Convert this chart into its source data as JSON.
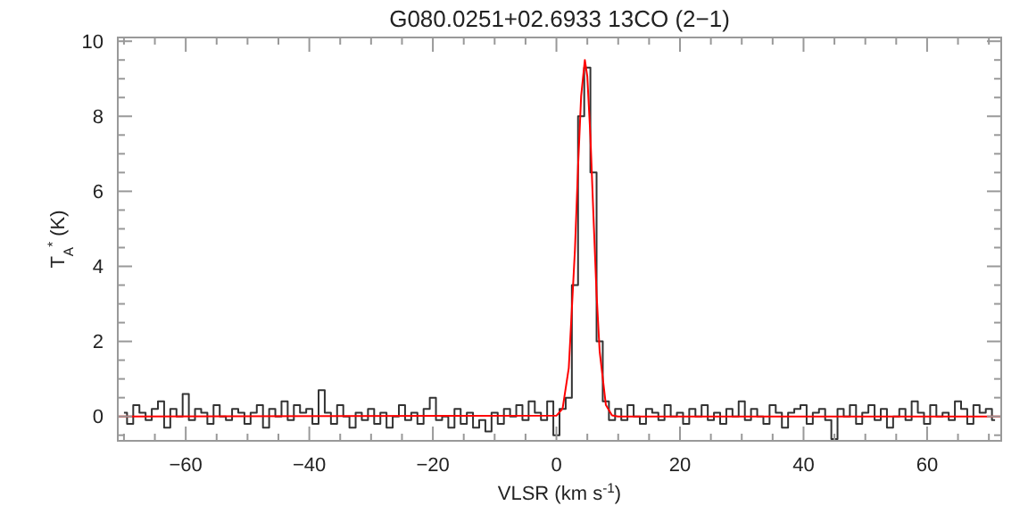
{
  "chart_data": {
    "type": "step",
    "title": "G080.0251+02.6933 13CO (2−1)",
    "xlabel": "VLSR (km s$^{-1}$)",
    "ylabel": "T$_{A}$$^{*}$ (K)",
    "xlim": [
      -71,
      72
    ],
    "ylim": [
      -0.65,
      10.1
    ],
    "xticks": [
      {
        "value": -70,
        "label": null
      },
      {
        "value": -65,
        "label": null
      },
      -60,
      {
        "value": -55,
        "label": null
      },
      {
        "value": -50,
        "label": null
      },
      {
        "value": -45,
        "label": null
      },
      -40,
      {
        "value": -35,
        "label": null
      },
      {
        "value": -30,
        "label": null
      },
      {
        "value": -25,
        "label": null
      },
      -20,
      {
        "value": -15,
        "label": null
      },
      {
        "value": -10,
        "label": null
      },
      {
        "value": -5,
        "label": null
      },
      0,
      {
        "value": 5,
        "label": null
      },
      {
        "value": 10,
        "label": null
      },
      {
        "value": 15,
        "label": null
      },
      20,
      {
        "value": 25,
        "label": null
      },
      {
        "value": 30,
        "label": null
      },
      {
        "value": 35,
        "label": null
      },
      40,
      {
        "value": 45,
        "label": null
      },
      {
        "value": 50,
        "label": null
      },
      {
        "value": 55,
        "label": null
      },
      60,
      {
        "value": 65,
        "label": null
      },
      {
        "value": 70,
        "label": null
      }
    ],
    "yticks": [
      {
        "value": -0.5,
        "label": null
      },
      0,
      {
        "value": 0.5,
        "label": null
      },
      {
        "value": 1,
        "label": null
      },
      {
        "value": 1.5,
        "label": null
      },
      2,
      {
        "value": 2.5,
        "label": null
      },
      {
        "value": 3,
        "label": null
      },
      {
        "value": 3.5,
        "label": null
      },
      4,
      {
        "value": 4.5,
        "label": null
      },
      {
        "value": 5,
        "label": null
      },
      {
        "value": 5.5,
        "label": null
      },
      6,
      {
        "value": 6.5,
        "label": null
      },
      {
        "value": 7,
        "label": null
      },
      {
        "value": 7.5,
        "label": null
      },
      8,
      {
        "value": 8.5,
        "label": null
      },
      {
        "value": 9,
        "label": null
      },
      {
        "value": 9.5,
        "label": null
      },
      10
    ],
    "grid": false,
    "marker": "none",
    "line_style": "solid",
    "series": [
      {
        "color": "#333333",
        "x": [
          -70,
          -69,
          -68,
          -67,
          -66,
          -65,
          -64,
          -63,
          -62,
          -61,
          -60,
          -59,
          -58,
          -57,
          -56,
          -55,
          -54,
          -53,
          -52,
          -51,
          -50,
          -49,
          -48,
          -47,
          -46,
          -45,
          -44,
          -43,
          -42,
          -41,
          -40,
          -39,
          -38,
          -37,
          -36,
          -35,
          -34,
          -33,
          -32,
          -31,
          -30,
          -29,
          -28,
          -27,
          -26,
          -25,
          -24,
          -23,
          -22,
          -21,
          -20,
          -19,
          -18,
          -17,
          -16,
          -15,
          -14,
          -13,
          -12,
          -11,
          -10,
          -9,
          -8,
          -7,
          -6,
          -5,
          -4,
          -3,
          -2,
          -1,
          0,
          1,
          2,
          3,
          4,
          5,
          6,
          7,
          8,
          9,
          10,
          11,
          12,
          13,
          14,
          15,
          16,
          17,
          18,
          19,
          20,
          21,
          22,
          23,
          24,
          25,
          26,
          27,
          28,
          29,
          30,
          31,
          32,
          33,
          34,
          35,
          36,
          37,
          38,
          39,
          40,
          41,
          42,
          43,
          44,
          45,
          46,
          47,
          48,
          49,
          50,
          51,
          52,
          53,
          54,
          55,
          56,
          57,
          58,
          59,
          60,
          61,
          62,
          63,
          64,
          65,
          66,
          67,
          68,
          69,
          70,
          71
        ],
        "values": [
          0.1,
          -0.2,
          0.3,
          0.1,
          -0.1,
          0.2,
          0.4,
          -0.3,
          0.2,
          0.0,
          0.6,
          -0.1,
          0.2,
          0.1,
          -0.2,
          0.3,
          0.0,
          -0.1,
          0.2,
          0.1,
          -0.2,
          0.1,
          0.3,
          -0.3,
          0.2,
          0.0,
          0.4,
          -0.1,
          0.3,
          0.1,
          0.2,
          -0.2,
          0.7,
          0.1,
          -0.2,
          0.3,
          0.0,
          -0.3,
          0.1,
          -0.1,
          0.2,
          -0.2,
          0.1,
          -0.3,
          0.0,
          0.3,
          -0.1,
          0.1,
          -0.2,
          0.2,
          0.5,
          -0.1,
          0.0,
          -0.3,
          0.2,
          -0.2,
          0.1,
          -0.3,
          -0.1,
          -0.4,
          0.1,
          -0.2,
          0.2,
          0.0,
          0.3,
          -0.1,
          0.4,
          0.1,
          -0.1,
          0.4,
          -0.5,
          0.2,
          0.5,
          3.5,
          8.0,
          9.3,
          6.5,
          2.0,
          0.4,
          -0.1,
          0.2,
          -0.1,
          0.3,
          0.0,
          -0.2,
          0.2,
          0.1,
          -0.1,
          0.3,
          0.0,
          0.1,
          -0.2,
          0.2,
          0.0,
          0.3,
          -0.1,
          0.1,
          -0.2,
          0.2,
          0.0,
          0.4,
          -0.1,
          0.2,
          0.0,
          -0.2,
          0.3,
          0.1,
          -0.3,
          0.1,
          0.2,
          0.3,
          -0.2,
          0.1,
          0.2,
          -0.1,
          -0.6,
          0.2,
          0.0,
          0.3,
          -0.2,
          0.1,
          0.3,
          -0.1,
          0.2,
          -0.3,
          0.0,
          0.2,
          -0.1,
          0.4,
          0.1,
          -0.2,
          0.3,
          0.0,
          0.1,
          -0.1,
          0.4,
          0.2,
          -0.2,
          0.3,
          0.1,
          0.2,
          -0.1
        ]
      },
      {
        "type": "line",
        "color": "#ff0000",
        "x": [
          -71,
          0,
          1,
          2,
          3,
          3.5,
          4,
          4.6,
          5,
          5.5,
          6,
          6.5,
          7,
          8,
          9,
          10,
          72
        ],
        "values": [
          0,
          0.02,
          0.21,
          1.29,
          4.45,
          6.64,
          8.54,
          9.5,
          9.06,
          7.47,
          5.32,
          3.26,
          1.73,
          0.31,
          0.03,
          0,
          0
        ]
      }
    ]
  }
}
